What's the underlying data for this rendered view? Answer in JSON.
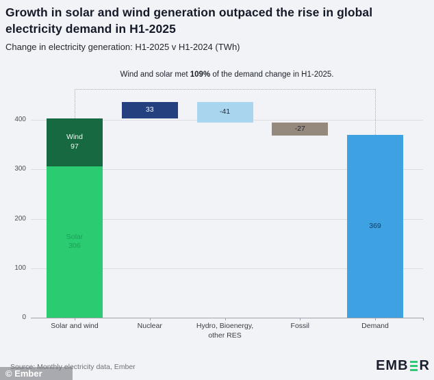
{
  "header": {
    "title": "Growth in solar and wind generation outpaced the rise in global electricity demand in H1-2025",
    "subtitle": "Change in electricity generation: H1-2025 v H1-2024 (TWh)"
  },
  "chart_data": {
    "type": "bar",
    "subtype": "waterfall",
    "units": "TWh",
    "ylim": [
      0,
      440
    ],
    "yticks": [
      0,
      100,
      200,
      300,
      400
    ],
    "grid": true,
    "legend": "none",
    "annotation": {
      "prefix": "Wind and solar met ",
      "highlight": "109%",
      "suffix": " of the demand change in H1-2025."
    },
    "categories": [
      "Solar and wind",
      "Nuclear",
      "Hydro, Bioenergy,\nother RES",
      "Fossil",
      "Demand"
    ],
    "bars": [
      {
        "category": "Solar and wind",
        "total": 403,
        "segments": [
          {
            "name": "Solar",
            "value": 306,
            "from": 0,
            "to": 306,
            "label": "Solar\n306",
            "color": "#2bcb72",
            "label_color": "#17a158"
          },
          {
            "name": "Wind",
            "value": 97,
            "from": 306,
            "to": 403,
            "label": "Wind\n97",
            "color": "#166941",
            "label_color": "#f2fbf5"
          }
        ]
      },
      {
        "category": "Nuclear",
        "value": 33,
        "from": 403,
        "to": 436,
        "label": "33",
        "color": "#24407f",
        "label_color": "#ffffff"
      },
      {
        "category": "Hydro, Bioenergy,\nother RES",
        "value": -41,
        "from": 395,
        "to": 436,
        "label": "-41",
        "color": "#a9d5ee",
        "label_color": "#1d2738"
      },
      {
        "category": "Fossil",
        "value": -27,
        "from": 368,
        "to": 395,
        "label": "-27",
        "color": "#95887d",
        "label_color": "#22262e"
      },
      {
        "category": "Demand",
        "value": 369,
        "from": 0,
        "to": 369,
        "label": "369",
        "color": "#3ea2e2",
        "label_color": "#123a63"
      }
    ]
  },
  "footer": {
    "source": "Source: Monthly electricity data, Ember",
    "watermark": "© Ember",
    "logo_left": "EMB",
    "logo_right": "R"
  },
  "colors": {
    "background": "#f2f3f6",
    "title_text": "#151a28",
    "gridline": "#dadce1",
    "axis": "#9ea3ab",
    "bracket": "#a8acb3",
    "logo_green": "#2bcb72",
    "logo_navy": "#1a1e2c"
  }
}
